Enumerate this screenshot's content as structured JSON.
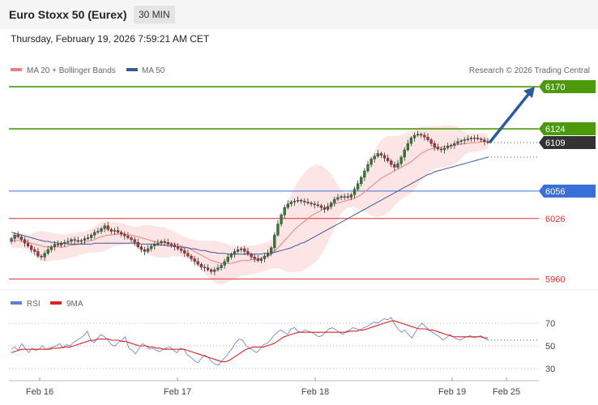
{
  "header": {
    "title": "Euro Stoxx 50 (Eurex)",
    "timeframe": "30 MIN",
    "timestamp": "Thursday, February 19, 2026 7:59:21 AM CET"
  },
  "legend": {
    "ma20_label": "MA 20 + Bollinger Bands",
    "ma50_label": "MA 50",
    "credit": "Research © 2026 Trading Central",
    "rsi_label": "RSI",
    "rsi_ma_label": "9MA"
  },
  "colors": {
    "up": "#2e7d32",
    "down": "#c62828",
    "ma20": "#f08080",
    "ma50": "#3a5a9a",
    "bands": "#fde1e1",
    "rsi": "#5b7fd6",
    "rsi_ma": "#e02020",
    "resistance": "#4c9a0a",
    "pivot": "#3a6fd8",
    "support": "#e03030",
    "arrow": "#2c5aa0",
    "current": "#333333"
  },
  "chart_data": [
    {
      "type": "candlestick",
      "title": "Euro Stoxx 50 (Eurex)",
      "timeframe": "30 MIN",
      "x_ticks": [
        "Feb 16",
        "Feb 17",
        "Feb 18",
        "Feb 19",
        "Feb 25"
      ],
      "ylim": [
        5955,
        6178
      ],
      "current_price": 6109,
      "levels": [
        {
          "label": "6170",
          "value": 6170,
          "kind": "resistance",
          "tag": true
        },
        {
          "label": "6124",
          "value": 6124,
          "kind": "resistance",
          "tag": true
        },
        {
          "label": "6056",
          "value": 6056,
          "kind": "pivot",
          "tag": true
        },
        {
          "label": "6026",
          "value": 6026,
          "kind": "support",
          "tag": false
        },
        {
          "label": "5960",
          "value": 5960,
          "kind": "support",
          "tag": false
        }
      ],
      "target_arrow": {
        "from": 6109,
        "to": 6170
      },
      "closes": [
        6004,
        6008,
        6006,
        6003,
        5999,
        5996,
        5992,
        5990,
        5985,
        5984,
        5988,
        5992,
        5995,
        5998,
        5997,
        5999,
        6000,
        6001,
        6003,
        6002,
        6001,
        6002,
        6004,
        6005,
        6008,
        6011,
        6012,
        6015,
        6018,
        6014,
        6012,
        6013,
        6011,
        6009,
        6007,
        6005,
        6003,
        6000,
        5995,
        5992,
        5990,
        5993,
        5996,
        5998,
        5999,
        6001,
        6000,
        5998,
        5997,
        5995,
        5993,
        5991,
        5988,
        5985,
        5982,
        5979,
        5976,
        5973,
        5972,
        5970,
        5968,
        5970,
        5972,
        5975,
        5979,
        5984,
        5987,
        5990,
        5992,
        5993,
        5990,
        5987,
        5984,
        5982,
        5980,
        5982,
        5985,
        5988,
        5994,
        6008,
        6020,
        6030,
        6038,
        6042,
        6044,
        6045,
        6046,
        6045,
        6044,
        6043,
        6042,
        6041,
        6040,
        6038,
        6036,
        6039,
        6043,
        6047,
        6049,
        6050,
        6050,
        6049,
        6052,
        6058,
        6064,
        6071,
        6078,
        6085,
        6091,
        6094,
        6097,
        6095,
        6092,
        6089,
        6085,
        6082,
        6086,
        6093,
        6101,
        6108,
        6114,
        6117,
        6118,
        6117,
        6115,
        6112,
        6108,
        6104,
        6102,
        6101,
        6103,
        6105,
        6106,
        6108,
        6110,
        6111,
        6112,
        6113,
        6114,
        6114,
        6113,
        6112,
        6110,
        6109
      ],
      "opens": [
        6001,
        6004,
        6008,
        6006,
        6003,
        5999,
        5996,
        5992,
        5990,
        5985,
        5984,
        5988,
        5992,
        5995,
        5998,
        5997,
        5999,
        6000,
        6001,
        6003,
        6002,
        6001,
        6002,
        6004,
        6005,
        6008,
        6011,
        6012,
        6015,
        6018,
        6014,
        6012,
        6013,
        6011,
        6009,
        6007,
        6005,
        6003,
        6000,
        5995,
        5992,
        5990,
        5993,
        5996,
        5998,
        5999,
        6001,
        6000,
        5998,
        5997,
        5995,
        5993,
        5991,
        5988,
        5985,
        5982,
        5979,
        5976,
        5973,
        5972,
        5970,
        5968,
        5970,
        5972,
        5975,
        5979,
        5984,
        5987,
        5990,
        5992,
        5993,
        5990,
        5987,
        5984,
        5982,
        5980,
        5982,
        5985,
        5988,
        5994,
        6008,
        6020,
        6030,
        6038,
        6042,
        6044,
        6045,
        6046,
        6045,
        6044,
        6043,
        6042,
        6041,
        6040,
        6038,
        6036,
        6039,
        6043,
        6047,
        6049,
        6050,
        6050,
        6049,
        6052,
        6058,
        6064,
        6071,
        6078,
        6085,
        6091,
        6094,
        6097,
        6095,
        6092,
        6089,
        6085,
        6082,
        6086,
        6093,
        6101,
        6108,
        6114,
        6117,
        6118,
        6117,
        6115,
        6112,
        6108,
        6104,
        6102,
        6101,
        6103,
        6105,
        6106,
        6108,
        6110,
        6111,
        6112,
        6113,
        6114,
        6114,
        6113,
        6112,
        6110
      ],
      "ma20": [
        6001,
        6002,
        6002,
        6002,
        6001,
        6000,
        5999,
        5998,
        5997,
        5996,
        5995,
        5995,
        5995,
        5995,
        5995,
        5995,
        5995,
        5996,
        5997,
        5997,
        5998,
        5999,
        6000,
        6001,
        6002,
        6003,
        6005,
        6006,
        6007,
        6008,
        6008,
        6009,
        6009,
        6009,
        6009,
        6008,
        6008,
        6007,
        6006,
        6005,
        6004,
        6003,
        6002,
        6001,
        6000,
        6000,
        6000,
        5999,
        5999,
        5998,
        5997,
        5996,
        5995,
        5994,
        5992,
        5990,
        5988,
        5986,
        5984,
        5982,
        5980,
        5979,
        5978,
        5977,
        5977,
        5977,
        5977,
        5978,
        5979,
        5980,
        5980,
        5980,
        5981,
        5981,
        5982,
        5983,
        5984,
        5985,
        5987,
        5990,
        5994,
        5998,
        6002,
        6006,
        6010,
        6014,
        6017,
        6020,
        6023,
        6026,
        6029,
        6031,
        6033,
        6035,
        6037,
        6039,
        6041,
        6042,
        6043,
        6044,
        6045,
        6046,
        6047,
        6048,
        6050,
        6052,
        6055,
        6058,
        6061,
        6064,
        6067,
        6070,
        6072,
        6074,
        6076,
        6078,
        6080,
        6082,
        6084,
        6086,
        6088,
        6091,
        6094,
        6097,
        6099,
        6101,
        6102,
        6103,
        6104,
        6104,
        6105,
        6105,
        6106,
        6106,
        6107,
        6107,
        6108,
        6108,
        6109,
        6109,
        6109,
        6110,
        6110,
        6110
      ],
      "ma50": [
        6011,
        6010,
        6009,
        6008,
        6007,
        6006,
        6005,
        6004,
        6003,
        6002,
        6001,
        6001,
        6000,
        6000,
        5999,
        5999,
        5999,
        5998,
        5998,
        5998,
        5998,
        5998,
        5998,
        5998,
        5998,
        5999,
        5999,
        5999,
        5999,
        5999,
        5999,
        5999,
        5999,
        5999,
        5999,
        5999,
        5999,
        5999,
        5999,
        5998,
        5998,
        5998,
        5998,
        5998,
        5997,
        5997,
        5997,
        5996,
        5996,
        5996,
        5995,
        5995,
        5994,
        5994,
        5993,
        5993,
        5992,
        5991,
        5991,
        5990,
        5989,
        5989,
        5988,
        5988,
        5988,
        5987,
        5987,
        5987,
        5987,
        5987,
        5987,
        5987,
        5987,
        5987,
        5987,
        5987,
        5988,
        5988,
        5988,
        5989,
        5990,
        5991,
        5992,
        5993,
        5994,
        5996,
        5997,
        5999,
        6000,
        6002,
        6004,
        6006,
        6008,
        6010,
        6012,
        6014,
        6016,
        6018,
        6020,
        6022,
        6024,
        6026,
        6028,
        6030,
        6032,
        6034,
        6036,
        6038,
        6040,
        6042,
        6044,
        6046,
        6048,
        6050,
        6052,
        6054,
        6056,
        6058,
        6060,
        6062,
        6064,
        6066,
        6068,
        6070,
        6072,
        6074,
        6075,
        6077,
        6078,
        6079,
        6080,
        6081,
        6082,
        6083,
        6084,
        6085,
        6086,
        6087,
        6088,
        6089,
        6090,
        6091,
        6092,
        6093
      ]
    },
    {
      "type": "line",
      "title": "RSI",
      "ylim": [
        25,
        80
      ],
      "y_ticks": [
        30,
        50,
        70
      ],
      "series": [
        {
          "name": "RSI",
          "values": [
            47,
            49,
            46,
            52,
            48,
            44,
            48,
            46,
            47,
            50,
            47,
            48,
            49,
            50,
            52,
            48,
            51,
            50,
            53,
            55,
            57,
            59,
            63,
            55,
            53,
            57,
            60,
            58,
            55,
            51,
            50,
            53,
            55,
            58,
            48,
            46,
            43,
            48,
            52,
            50,
            47,
            48,
            46,
            45,
            47,
            48,
            49,
            46,
            44,
            48,
            47,
            42,
            40,
            37,
            35,
            39,
            42,
            40,
            36,
            34,
            33,
            37,
            40,
            44,
            48,
            53,
            56,
            55,
            50,
            48,
            46,
            44,
            47,
            51,
            52,
            55,
            59,
            62,
            64,
            62,
            60,
            65,
            66,
            63,
            62,
            64,
            63,
            62,
            60,
            58,
            59,
            62,
            65,
            66,
            64,
            62,
            60,
            63,
            64,
            66,
            65,
            64,
            66,
            67,
            69,
            71,
            70,
            72,
            74,
            73,
            75,
            69,
            65,
            62,
            64,
            60,
            57,
            62,
            67,
            70,
            67,
            64,
            62,
            60,
            58,
            55,
            57,
            60,
            58,
            56,
            55,
            57,
            58,
            59,
            57,
            58,
            59,
            57,
            55
          ]
        },
        {
          "name": "9MA",
          "values": [
            44,
            45,
            46,
            47,
            47,
            47,
            47,
            47,
            47,
            47,
            47,
            47,
            48,
            48,
            48,
            49,
            49,
            49,
            50,
            51,
            52,
            53,
            54,
            55,
            55,
            56,
            56,
            56,
            56,
            55,
            55,
            55,
            54,
            54,
            53,
            52,
            51,
            50,
            50,
            50,
            49,
            49,
            48,
            48,
            47,
            47,
            47,
            47,
            47,
            47,
            47,
            46,
            45,
            44,
            43,
            42,
            41,
            40,
            39,
            38,
            37,
            36,
            36,
            37,
            39,
            41,
            43,
            45,
            47,
            48,
            49,
            49,
            49,
            49,
            50,
            51,
            52,
            54,
            56,
            58,
            59,
            60,
            61,
            62,
            62,
            62,
            62,
            62,
            62,
            62,
            62,
            62,
            62,
            62,
            62,
            62,
            62,
            62,
            63,
            63,
            63,
            64,
            64,
            65,
            66,
            67,
            68,
            69,
            70,
            71,
            72,
            72,
            71,
            70,
            69,
            68,
            67,
            66,
            65,
            65,
            65,
            64,
            64,
            63,
            62,
            61,
            60,
            59,
            58,
            58,
            58,
            58,
            58,
            58,
            58,
            58,
            58,
            57,
            57
          ]
        }
      ],
      "reference_value": 55
    }
  ]
}
